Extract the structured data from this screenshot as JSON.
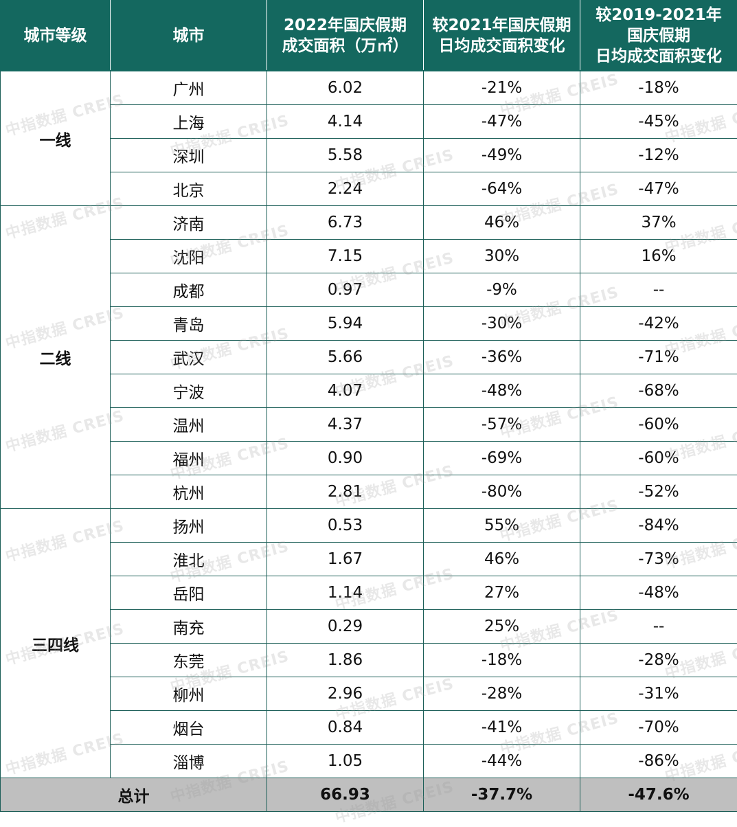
{
  "headers": {
    "tier": "城市等级",
    "city": "城市",
    "area": [
      "2022年国庆假期",
      "成交面积（万㎡）"
    ],
    "chg2021": [
      "较2021年国庆假期",
      "日均成交面积变化"
    ],
    "chg2019": [
      "较2019-2021年",
      "国庆假期",
      "日均成交面积变化"
    ]
  },
  "tiers": [
    {
      "name": "一线",
      "rows": [
        {
          "city": "广州",
          "area": "6.02",
          "chg2021": "-21%",
          "chg2019": "-18%"
        },
        {
          "city": "上海",
          "area": "4.14",
          "chg2021": "-47%",
          "chg2019": "-45%"
        },
        {
          "city": "深圳",
          "area": "5.58",
          "chg2021": "-49%",
          "chg2019": "-12%"
        },
        {
          "city": "北京",
          "area": "2.24",
          "chg2021": "-64%",
          "chg2019": "-47%"
        }
      ]
    },
    {
      "name": "二线",
      "rows": [
        {
          "city": "济南",
          "area": "6.73",
          "chg2021": "46%",
          "chg2019": "37%"
        },
        {
          "city": "沈阳",
          "area": "7.15",
          "chg2021": "30%",
          "chg2019": "16%"
        },
        {
          "city": "成都",
          "area": "0.97",
          "chg2021": "-9%",
          "chg2019": "--"
        },
        {
          "city": "青岛",
          "area": "5.94",
          "chg2021": "-30%",
          "chg2019": "-42%"
        },
        {
          "city": "武汉",
          "area": "5.66",
          "chg2021": "-36%",
          "chg2019": "-71%"
        },
        {
          "city": "宁波",
          "area": "4.07",
          "chg2021": "-48%",
          "chg2019": "-68%"
        },
        {
          "city": "温州",
          "area": "4.37",
          "chg2021": "-57%",
          "chg2019": "-60%"
        },
        {
          "city": "福州",
          "area": "0.90",
          "chg2021": "-69%",
          "chg2019": "-60%"
        },
        {
          "city": "杭州",
          "area": "2.81",
          "chg2021": "-80%",
          "chg2019": "-52%"
        }
      ]
    },
    {
      "name": "三四线",
      "rows": [
        {
          "city": "扬州",
          "area": "0.53",
          "chg2021": "55%",
          "chg2019": "-84%"
        },
        {
          "city": "淮北",
          "area": "1.67",
          "chg2021": "46%",
          "chg2019": "-73%"
        },
        {
          "city": "岳阳",
          "area": "1.14",
          "chg2021": "27%",
          "chg2019": "-48%"
        },
        {
          "city": "南充",
          "area": "0.29",
          "chg2021": "25%",
          "chg2019": "--"
        },
        {
          "city": "东莞",
          "area": "1.86",
          "chg2021": "-18%",
          "chg2019": "-28%"
        },
        {
          "city": "柳州",
          "area": "2.96",
          "chg2021": "-28%",
          "chg2019": "-31%"
        },
        {
          "city": "烟台",
          "area": "0.84",
          "chg2021": "-41%",
          "chg2019": "-70%"
        },
        {
          "city": "淄博",
          "area": "1.05",
          "chg2021": "-44%",
          "chg2019": "-86%"
        }
      ]
    }
  ],
  "total": {
    "label": "总计",
    "area": "66.93",
    "chg2021": "-37.7%",
    "chg2019": "-47.6%"
  },
  "watermark": "中指数据 CREIS",
  "colors": {
    "header_bg": "#14685f",
    "total_bg": "#bfbfbf"
  }
}
